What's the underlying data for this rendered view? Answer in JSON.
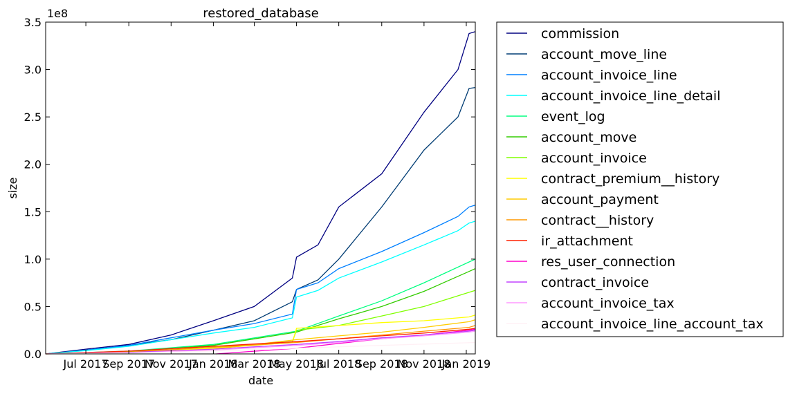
{
  "chart_data": {
    "type": "line",
    "title": "restored_database",
    "xlabel": "date",
    "ylabel": "size",
    "y_scale_label": "1e8",
    "x_tick_labels": [
      "Jul 2017",
      "Sep 2017",
      "Nov 2017",
      "Jan 2018",
      "Mar 2018",
      "May 2018",
      "Jul 2018",
      "Sep 2018",
      "Nov 2018",
      "Jan 2019"
    ],
    "x_tick_dates": [
      "2017-07-01",
      "2017-09-01",
      "2017-11-01",
      "2018-01-01",
      "2018-03-01",
      "2018-05-01",
      "2018-07-01",
      "2018-09-01",
      "2018-11-01",
      "2019-01-01"
    ],
    "xlim": [
      "2017-05-04",
      "2019-01-14"
    ],
    "ylim": [
      0,
      350000000
    ],
    "y_tick_values": [
      0,
      50000000,
      100000000,
      150000000,
      200000000,
      250000000,
      300000000,
      350000000
    ],
    "y_tick_labels": [
      "0.0",
      "0.5",
      "1.0",
      "1.5",
      "2.0",
      "2.5",
      "3.0",
      "3.5"
    ],
    "legend_position": "outside-right",
    "grid": false,
    "series": [
      {
        "name": "commission",
        "color": "#000080",
        "points": [
          [
            "2017-05-04",
            0
          ],
          [
            "2017-07-01",
            5000000
          ],
          [
            "2017-09-01",
            10000000
          ],
          [
            "2017-11-01",
            20000000
          ],
          [
            "2018-01-01",
            35000000
          ],
          [
            "2018-03-01",
            50000000
          ],
          [
            "2018-04-25",
            80000000
          ],
          [
            "2018-05-01",
            102000000
          ],
          [
            "2018-06-01",
            115000000
          ],
          [
            "2018-07-01",
            155000000
          ],
          [
            "2018-09-01",
            190000000
          ],
          [
            "2018-11-01",
            255000000
          ],
          [
            "2018-12-20",
            300000000
          ],
          [
            "2019-01-05",
            338000000
          ],
          [
            "2019-01-14",
            340000000
          ]
        ]
      },
      {
        "name": "account_move_line",
        "color": "#003c73",
        "points": [
          [
            "2017-05-04",
            0
          ],
          [
            "2017-07-01",
            4000000
          ],
          [
            "2017-09-01",
            9000000
          ],
          [
            "2017-11-01",
            15000000
          ],
          [
            "2018-01-01",
            25000000
          ],
          [
            "2018-03-01",
            35000000
          ],
          [
            "2018-04-25",
            55000000
          ],
          [
            "2018-05-01",
            68000000
          ],
          [
            "2018-06-01",
            78000000
          ],
          [
            "2018-07-01",
            100000000
          ],
          [
            "2018-09-01",
            155000000
          ],
          [
            "2018-11-01",
            215000000
          ],
          [
            "2018-12-20",
            250000000
          ],
          [
            "2019-01-05",
            280000000
          ],
          [
            "2019-01-14",
            281000000
          ]
        ]
      },
      {
        "name": "account_invoice_line",
        "color": "#0080ff",
        "points": [
          [
            "2017-05-04",
            0
          ],
          [
            "2017-07-01",
            4000000
          ],
          [
            "2017-09-01",
            9000000
          ],
          [
            "2017-11-01",
            17000000
          ],
          [
            "2018-01-01",
            25000000
          ],
          [
            "2018-03-01",
            32000000
          ],
          [
            "2018-04-25",
            42000000
          ],
          [
            "2018-05-01",
            68000000
          ],
          [
            "2018-06-01",
            75000000
          ],
          [
            "2018-07-01",
            90000000
          ],
          [
            "2018-09-01",
            108000000
          ],
          [
            "2018-11-01",
            128000000
          ],
          [
            "2018-12-20",
            145000000
          ],
          [
            "2019-01-05",
            155000000
          ],
          [
            "2019-01-14",
            157000000
          ]
        ]
      },
      {
        "name": "account_invoice_line_detail",
        "color": "#00ffff",
        "points": [
          [
            "2017-05-04",
            0
          ],
          [
            "2017-07-01",
            3500000
          ],
          [
            "2017-09-01",
            8000000
          ],
          [
            "2017-11-01",
            15000000
          ],
          [
            "2018-01-01",
            22000000
          ],
          [
            "2018-03-01",
            28000000
          ],
          [
            "2018-04-25",
            38000000
          ],
          [
            "2018-05-01",
            60000000
          ],
          [
            "2018-06-01",
            67000000
          ],
          [
            "2018-07-01",
            80000000
          ],
          [
            "2018-09-01",
            97000000
          ],
          [
            "2018-11-01",
            115000000
          ],
          [
            "2018-12-20",
            130000000
          ],
          [
            "2019-01-05",
            138000000
          ],
          [
            "2019-01-14",
            140000000
          ]
        ]
      },
      {
        "name": "event_log",
        "color": "#00ff80",
        "points": [
          [
            "2017-05-04",
            0
          ],
          [
            "2017-09-01",
            3000000
          ],
          [
            "2018-01-01",
            10000000
          ],
          [
            "2018-05-01",
            24000000
          ],
          [
            "2018-07-01",
            40000000
          ],
          [
            "2018-09-01",
            56000000
          ],
          [
            "2018-11-01",
            75000000
          ],
          [
            "2019-01-05",
            97000000
          ],
          [
            "2019-01-14",
            100000000
          ]
        ]
      },
      {
        "name": "account_move",
        "color": "#33cc00",
        "points": [
          [
            "2017-05-04",
            0
          ],
          [
            "2017-09-01",
            2500000
          ],
          [
            "2018-01-01",
            9000000
          ],
          [
            "2018-05-01",
            23000000
          ],
          [
            "2018-07-01",
            37000000
          ],
          [
            "2018-09-01",
            50000000
          ],
          [
            "2018-11-01",
            66000000
          ],
          [
            "2019-01-05",
            87000000
          ],
          [
            "2019-01-14",
            90000000
          ]
        ]
      },
      {
        "name": "account_invoice",
        "color": "#80ff00",
        "points": [
          [
            "2017-05-04",
            0
          ],
          [
            "2017-09-01",
            2000000
          ],
          [
            "2018-01-01",
            7000000
          ],
          [
            "2018-04-25",
            13000000
          ],
          [
            "2018-05-01",
            25000000
          ],
          [
            "2018-07-01",
            30000000
          ],
          [
            "2018-09-01",
            40000000
          ],
          [
            "2018-11-01",
            50000000
          ],
          [
            "2019-01-05",
            65000000
          ],
          [
            "2019-01-14",
            67000000
          ]
        ]
      },
      {
        "name": "contract_premium__history",
        "color": "#ffff00",
        "points": [
          [
            "2017-05-04",
            0
          ],
          [
            "2017-09-01",
            1500000
          ],
          [
            "2018-01-01",
            6000000
          ],
          [
            "2018-04-25",
            12000000
          ],
          [
            "2018-05-01",
            27000000
          ],
          [
            "2018-07-01",
            30000000
          ],
          [
            "2018-09-01",
            33000000
          ],
          [
            "2018-11-01",
            35000000
          ],
          [
            "2019-01-05",
            39000000
          ],
          [
            "2019-01-14",
            41000000
          ]
        ]
      },
      {
        "name": "account_payment",
        "color": "#ffcc00",
        "points": [
          [
            "2017-05-04",
            0
          ],
          [
            "2017-09-01",
            1000000
          ],
          [
            "2018-01-01",
            5000000
          ],
          [
            "2018-05-01",
            15000000
          ],
          [
            "2018-07-01",
            19000000
          ],
          [
            "2018-09-01",
            23000000
          ],
          [
            "2018-11-01",
            28000000
          ],
          [
            "2019-01-05",
            34000000
          ],
          [
            "2019-01-14",
            36000000
          ]
        ]
      },
      {
        "name": "contract__history",
        "color": "#ff9900",
        "points": [
          [
            "2017-05-04",
            0
          ],
          [
            "2017-09-01",
            2000000
          ],
          [
            "2018-01-01",
            7000000
          ],
          [
            "2018-05-01",
            12000000
          ],
          [
            "2018-07-01",
            16000000
          ],
          [
            "2018-09-01",
            20000000
          ],
          [
            "2018-11-01",
            24000000
          ],
          [
            "2019-01-05",
            28000000
          ],
          [
            "2019-01-14",
            30000000
          ]
        ]
      },
      {
        "name": "ir_attachment",
        "color": "#ff2000",
        "points": [
          [
            "2017-05-04",
            0
          ],
          [
            "2017-09-01",
            3000000
          ],
          [
            "2018-01-01",
            8000000
          ],
          [
            "2018-05-01",
            13000000
          ],
          [
            "2018-07-01",
            16000000
          ],
          [
            "2018-09-01",
            19000000
          ],
          [
            "2018-11-01",
            22000000
          ],
          [
            "2019-01-05",
            26000000
          ],
          [
            "2019-01-14",
            27000000
          ]
        ]
      },
      {
        "name": "res_user_connection",
        "color": "#ff00cc",
        "points": [
          [
            "2018-01-05",
            0
          ],
          [
            "2018-05-01",
            6000000
          ],
          [
            "2018-07-01",
            11000000
          ],
          [
            "2018-09-01",
            16000000
          ],
          [
            "2018-11-01",
            20000000
          ],
          [
            "2019-01-05",
            25000000
          ],
          [
            "2019-01-14",
            26000000
          ]
        ]
      },
      {
        "name": "contract_invoice",
        "color": "#c040ff",
        "points": [
          [
            "2017-05-04",
            0
          ],
          [
            "2017-09-01",
            1500000
          ],
          [
            "2018-01-01",
            5000000
          ],
          [
            "2018-05-01",
            10000000
          ],
          [
            "2018-07-01",
            13000000
          ],
          [
            "2018-09-01",
            17000000
          ],
          [
            "2018-11-01",
            20000000
          ],
          [
            "2019-01-05",
            24000000
          ],
          [
            "2019-01-14",
            25000000
          ]
        ]
      },
      {
        "name": "account_invoice_tax",
        "color": "#ff99ff",
        "points": [
          [
            "2017-05-04",
            0
          ],
          [
            "2017-09-01",
            1000000
          ],
          [
            "2018-01-01",
            4000000
          ],
          [
            "2018-05-01",
            9000000
          ],
          [
            "2018-07-01",
            12000000
          ],
          [
            "2018-09-01",
            16000000
          ],
          [
            "2018-11-01",
            19000000
          ],
          [
            "2019-01-05",
            23000000
          ],
          [
            "2019-01-14",
            24000000
          ]
        ]
      },
      {
        "name": "account_invoice_line_account_tax",
        "color": "#fff0f5",
        "points": [
          [
            "2017-05-04",
            0
          ],
          [
            "2017-09-01",
            800000
          ],
          [
            "2018-01-01",
            3000000
          ],
          [
            "2018-05-01",
            6000000
          ],
          [
            "2018-09-01",
            9000000
          ],
          [
            "2019-01-14",
            12000000
          ]
        ]
      }
    ]
  }
}
